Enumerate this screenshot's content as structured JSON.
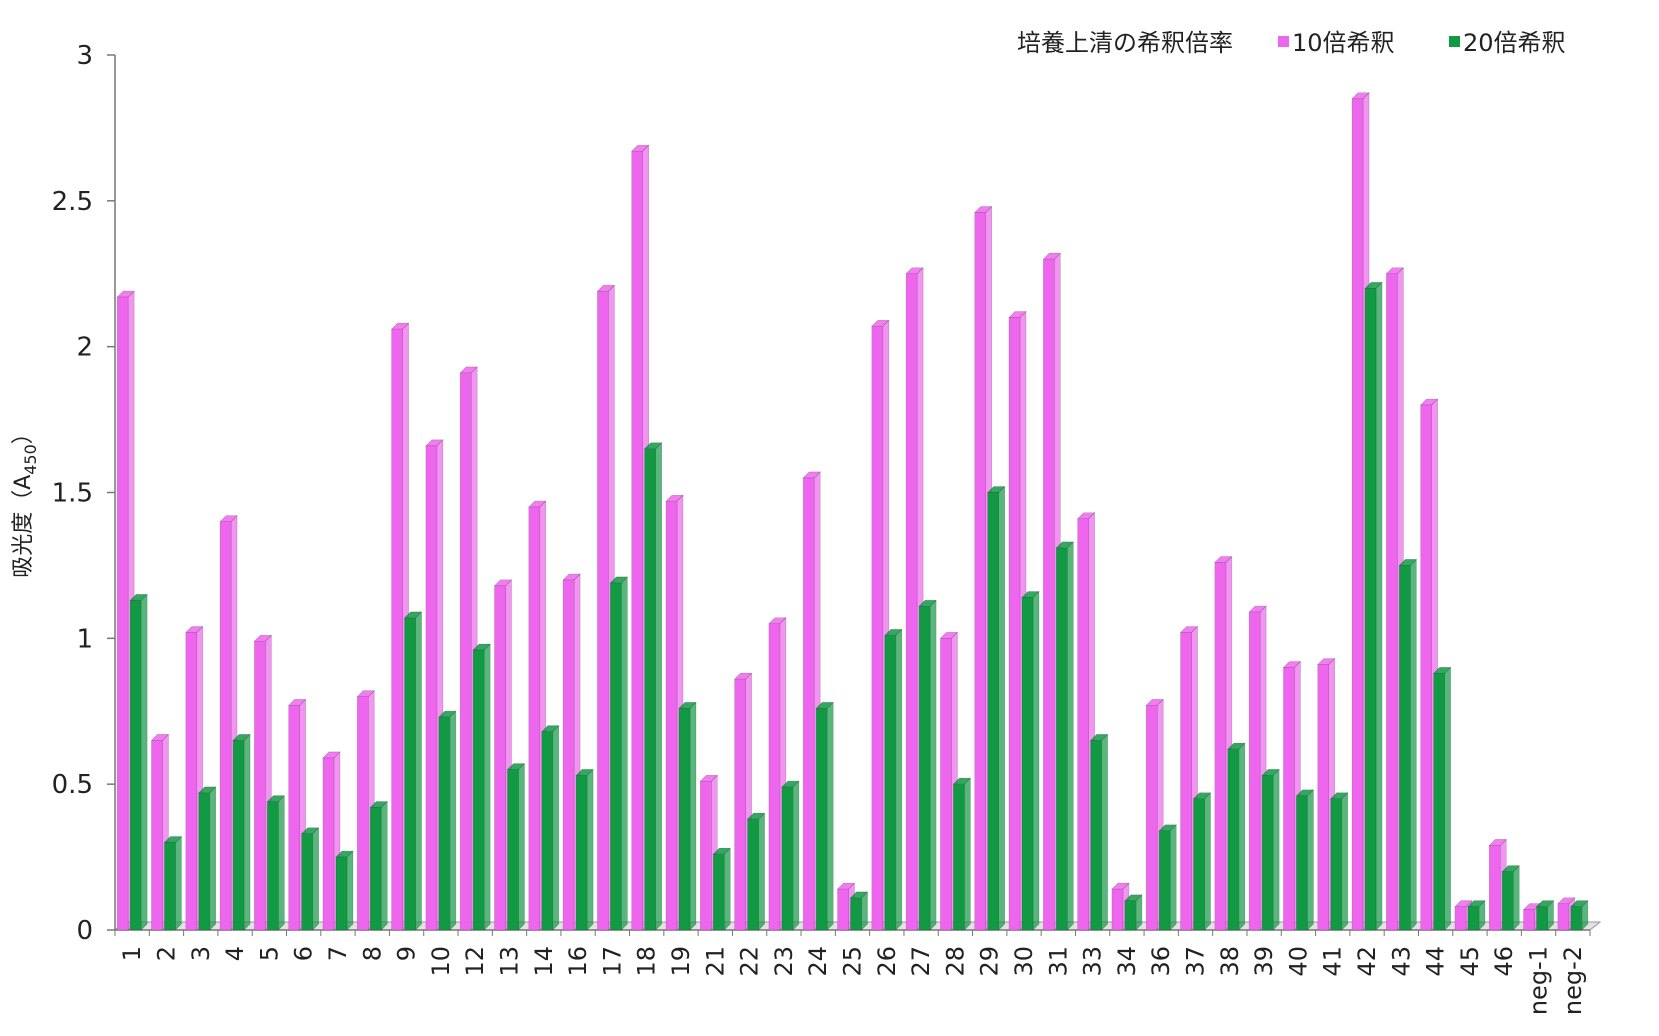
{
  "chart_data": {
    "type": "bar",
    "ylabel": "吸光度（A",
    "ylabel_sub": "450",
    "ylabel_close": "）",
    "ylim": [
      0,
      3
    ],
    "yticks": [
      0,
      0.5,
      1,
      1.5,
      2,
      2.5,
      3
    ],
    "legend_title": "培養上清の希釈倍率",
    "legend_position": "top-right",
    "categories": [
      "1",
      "2",
      "3",
      "4",
      "5",
      "6",
      "7",
      "8",
      "9",
      "10",
      "12",
      "13",
      "14",
      "16",
      "17",
      "18",
      "19",
      "21",
      "22",
      "23",
      "24",
      "25",
      "26",
      "27",
      "28",
      "29",
      "30",
      "31",
      "33",
      "34",
      "36",
      "37",
      "38",
      "39",
      "40",
      "41",
      "42",
      "43",
      "44",
      "45",
      "46",
      "neg-1",
      "neg-2"
    ],
    "series": [
      {
        "name": "10倍希釈",
        "color": "#ee66ee",
        "values": [
          2.17,
          0.65,
          1.02,
          1.4,
          0.99,
          0.77,
          0.59,
          0.8,
          2.06,
          1.66,
          1.91,
          1.18,
          1.45,
          1.2,
          2.19,
          2.67,
          1.47,
          0.51,
          0.86,
          1.05,
          1.55,
          0.14,
          2.07,
          2.25,
          1.0,
          2.46,
          2.1,
          2.3,
          1.41,
          0.14,
          0.77,
          1.02,
          1.26,
          1.09,
          0.9,
          0.91,
          2.85,
          2.25,
          1.8,
          0.08,
          0.29,
          0.07,
          0.09
        ]
      },
      {
        "name": "20倍希釈",
        "color": "#119944",
        "values": [
          1.13,
          0.3,
          0.47,
          0.65,
          0.44,
          0.33,
          0.25,
          0.42,
          1.07,
          0.73,
          0.96,
          0.55,
          0.68,
          0.53,
          1.19,
          1.65,
          0.76,
          0.26,
          0.38,
          0.49,
          0.76,
          0.11,
          1.01,
          1.11,
          0.5,
          1.5,
          1.14,
          1.31,
          0.65,
          0.1,
          0.34,
          0.45,
          0.62,
          0.53,
          0.46,
          0.45,
          2.2,
          1.25,
          0.88,
          0.08,
          0.2,
          0.08,
          0.08
        ]
      }
    ]
  }
}
